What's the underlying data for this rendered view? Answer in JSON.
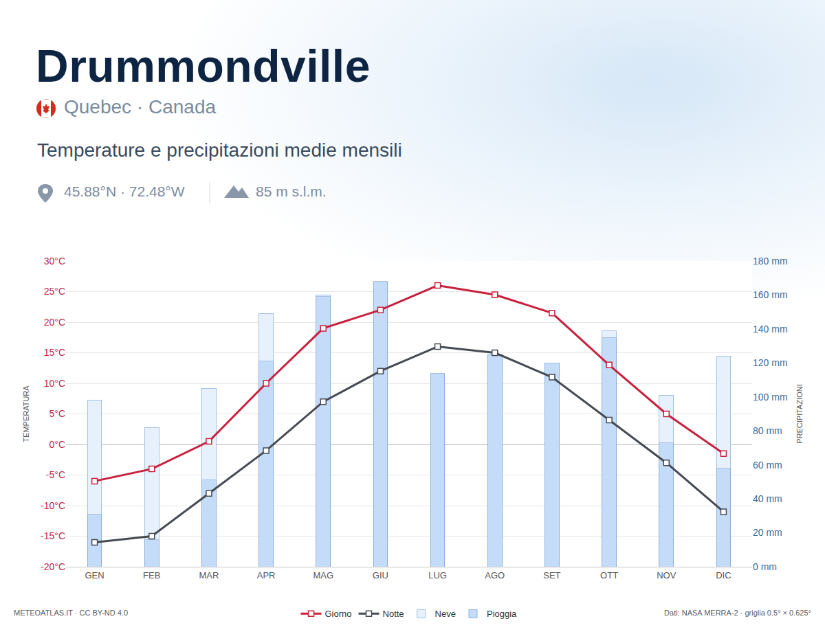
{
  "chart_data": {
    "type": "bar",
    "title": "Drummondville",
    "subtitle": "Temperature e precipitazioni medie mensili",
    "header": {
      "location": "Quebec · Canada",
      "coordinates": "45.88°N · 72.48°W",
      "elevation": "85 m s.l.m."
    },
    "footer": {
      "source": "METEOATLAS.IT · CC BY-ND 4.0",
      "data": "Dati: NASA MERRA-2 · griglia 0.5° × 0.625°"
    },
    "y_label": "TEMPERATURA",
    "y2_label": "PRECIPITAZIONI",
    "categories": [
      "GEN",
      "FEB",
      "MAR",
      "APR",
      "MAG",
      "GIU",
      "LUG",
      "AGO",
      "SET",
      "OTT",
      "NOV",
      "DIC"
    ],
    "series": [
      {
        "name": "Giorno",
        "type": "line",
        "color": "#c8213e",
        "marker": "square",
        "line_style": "solid",
        "values": [
          -6,
          -4,
          0.5,
          10,
          19,
          22,
          26,
          24.5,
          21.5,
          13,
          5,
          -1.5
        ]
      },
      {
        "name": "Notte",
        "type": "line",
        "color": "#464b53",
        "marker": "square",
        "line_style": "solid",
        "values": [
          -16,
          -15,
          -8,
          -1,
          7,
          12,
          16,
          15,
          11,
          4,
          -3,
          -11
        ]
      },
      {
        "name": "Neve",
        "type": "bar",
        "axis": "y2",
        "color": "#e6f1fc",
        "values": [
          67,
          66,
          54,
          28,
          1,
          0,
          0,
          0,
          0,
          4,
          28,
          66
        ]
      },
      {
        "name": "Pioggia",
        "type": "bar",
        "axis": "y2",
        "color": "#c4dcf7",
        "values": [
          31,
          16,
          51,
          121,
          159,
          168,
          114,
          125,
          120,
          135,
          73,
          58
        ]
      }
    ],
    "stacked": true,
    "grid": true,
    "legend": "bottom",
    "ylim": [
      -20,
      30
    ],
    "yticks": [
      {
        "value": -20,
        "label": "-20°C"
      },
      {
        "value": -15,
        "label": "-15°C"
      },
      {
        "value": -10,
        "label": "-10°C"
      },
      {
        "value": -5,
        "label": "-5°C"
      },
      {
        "value": 0,
        "label": "0°C"
      },
      {
        "value": 5,
        "label": "5°C"
      },
      {
        "value": 10,
        "label": "10°C"
      },
      {
        "value": 15,
        "label": "15°C"
      },
      {
        "value": 20,
        "label": "20°C"
      },
      {
        "value": 25,
        "label": "25°C"
      },
      {
        "value": 30,
        "label": "30°C"
      }
    ],
    "y2lim": [
      0,
      180
    ],
    "y2ticks": [
      {
        "value": 0,
        "label": "0 mm"
      },
      {
        "value": 20,
        "label": "20 mm"
      },
      {
        "value": 40,
        "label": "40 mm"
      },
      {
        "value": 60,
        "label": "60 mm"
      },
      {
        "value": 80,
        "label": "80 mm"
      },
      {
        "value": 100,
        "label": "100 mm"
      },
      {
        "value": 120,
        "label": "120 mm"
      },
      {
        "value": 140,
        "label": "140 mm"
      },
      {
        "value": 160,
        "label": "160 mm"
      },
      {
        "value": 180,
        "label": "180 mm"
      }
    ]
  }
}
